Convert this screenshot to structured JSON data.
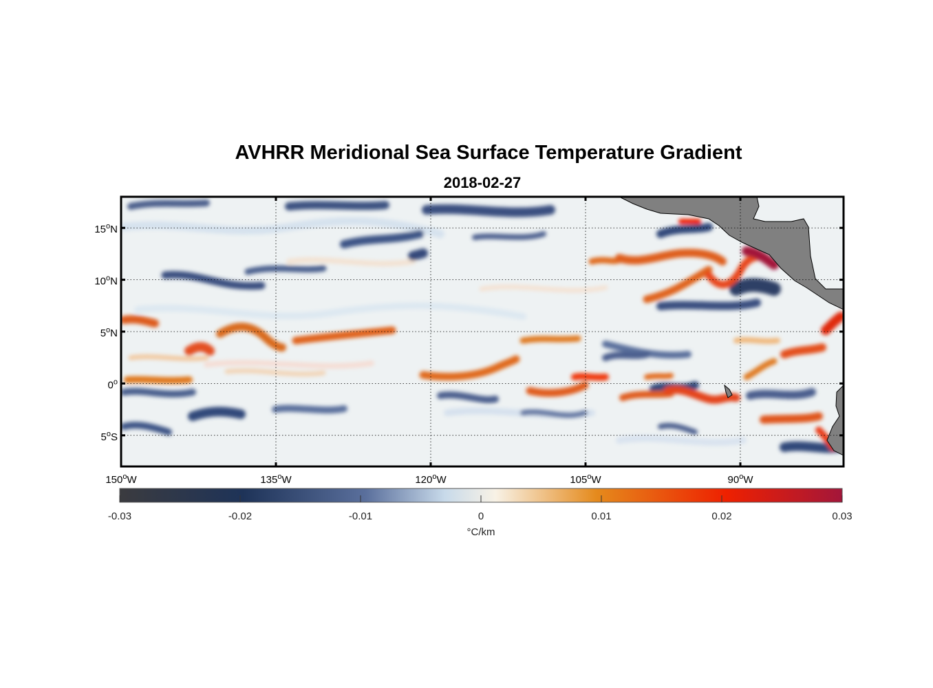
{
  "map": {
    "title": "AVHRR Meridional Sea Surface Temperature Gradient",
    "subtitle": "2018-02-27",
    "lon_range": [
      -150,
      -80
    ],
    "lat_range": [
      -8,
      18
    ],
    "lat_ticks": [
      {
        "value": 15,
        "deg": "15",
        "hemi": "N"
      },
      {
        "value": 10,
        "deg": "10",
        "hemi": "N"
      },
      {
        "value": 5,
        "deg": "5",
        "hemi": "N"
      },
      {
        "value": 0,
        "deg": "0",
        "hemi": ""
      },
      {
        "value": -5,
        "deg": "5",
        "hemi": "S"
      }
    ],
    "lon_ticks": [
      {
        "value": -150,
        "deg": "150",
        "hemi": "W"
      },
      {
        "value": -135,
        "deg": "135",
        "hemi": "W"
      },
      {
        "value": -120,
        "deg": "120",
        "hemi": "W"
      },
      {
        "value": -105,
        "deg": "105",
        "hemi": "W"
      },
      {
        "value": -90,
        "deg": "90",
        "hemi": "W"
      }
    ],
    "land_color": "#808080",
    "grid": "dotted"
  },
  "colorbar": {
    "range": [
      -0.03,
      0.03
    ],
    "tick_labels": [
      "-0.03",
      "-0.02",
      "-0.01",
      "0",
      "0.01",
      "0.02",
      "0.03"
    ],
    "unit_label": "°C/km",
    "colors": [
      "#3b3b3f",
      "#1e3358",
      "#5a6f9c",
      "#c8daea",
      "#f8f2e6",
      "#e58a1c",
      "#ee2000",
      "#a3163a"
    ]
  }
}
